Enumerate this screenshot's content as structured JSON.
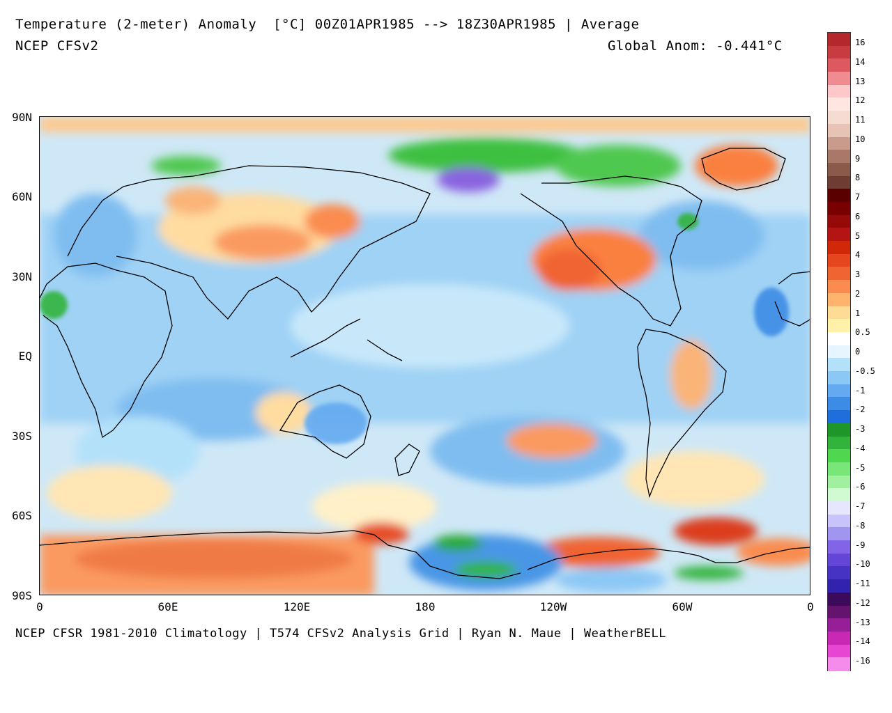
{
  "header": {
    "title": "Temperature (2-meter) Anomaly  [°C] 00Z01APR1985 --> 18Z30APR1985 | Average",
    "model": "NCEP CFSv2",
    "global_anom": "Global Anom: -0.441°C"
  },
  "footer": {
    "credits": "NCEP CFSR 1981-2010 Climatology | T574 CFSv2 Analysis Grid | Ryan N. Maue | WeatherBELL"
  },
  "axes": {
    "lat_labels": [
      "90N",
      "60N",
      "30N",
      "EQ",
      "30S",
      "60S",
      "90S"
    ],
    "lon_labels": [
      "0",
      "60E",
      "120E",
      "180",
      "120W",
      "60W",
      "0"
    ]
  },
  "colorbar": {
    "labels": [
      "16",
      "14",
      "13",
      "12",
      "11",
      "10",
      "9",
      "8",
      "7",
      "6",
      "5",
      "4",
      "3",
      "2",
      "1",
      "0.5",
      "0",
      "-0.5",
      "-1",
      "-2",
      "-3",
      "-4",
      "-5",
      "-6",
      "-7",
      "-8",
      "-9",
      "-10",
      "-11",
      "-12",
      "-13",
      "-14",
      "-16"
    ],
    "colors": [
      "#b4282d",
      "#c83c41",
      "#dc5a5f",
      "#f08c91",
      "#ffc8c8",
      "#ffe6e1",
      "#f5dcd2",
      "#e6c3b4",
      "#c89b8c",
      "#aa7869",
      "#8c5a4b",
      "#6e3c32",
      "#5a0000",
      "#780000",
      "#960a0a",
      "#b41414",
      "#d2280a",
      "#e6461e",
      "#f06432",
      "#fa8c50",
      "#ffb46e",
      "#ffdc96",
      "#fff0aa",
      "#ffffff",
      "#e6f5ff",
      "#b4e1fa",
      "#8cc8f5",
      "#64aaf0",
      "#3c8ce6",
      "#1e6edc",
      "#1e9628",
      "#32b43c",
      "#50d750",
      "#78e678",
      "#a0f0a0",
      "#d2fad2",
      "#e6e6ff",
      "#c8c3fa",
      "#a096f0",
      "#8264e6",
      "#6446d7",
      "#4632c3",
      "#3223af",
      "#3c0a5a",
      "#64146e",
      "#961e96",
      "#c828b4",
      "#e646d2",
      "#f58ceb"
    ]
  }
}
